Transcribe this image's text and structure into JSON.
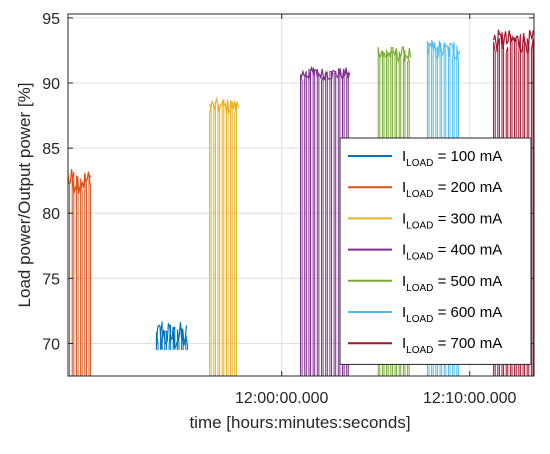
{
  "chart_data": {
    "type": "line",
    "xlabel": "time [hours:minutes:seconds]",
    "ylabel": "Load power/Output power [%]",
    "ylim": [
      67.5,
      95.3
    ],
    "yticks": [
      70,
      75,
      80,
      85,
      90,
      95
    ],
    "xticks": [
      {
        "label": "12:00:00.000",
        "t": 0
      },
      {
        "label": "12:10:00.000",
        "t": 600
      }
    ],
    "xlim": [
      -682,
      805
    ],
    "grid": true,
    "legend_position": "right",
    "series": [
      {
        "name": "I_LOAD = 100 mA",
        "label_pre": "I",
        "label_sub": "LOAD",
        "label_post": " = 100 mA",
        "color": "#0072BD",
        "t_start": -400,
        "t_end": -303,
        "base": 69.5,
        "level": 70.5,
        "noise": 1.2
      },
      {
        "name": "I_LOAD = 200 mA",
        "label_pre": "I",
        "label_sub": "LOAD",
        "label_post": " = 200 mA",
        "color": "#D95319",
        "t_start": -682,
        "t_end": -608,
        "base": 67.5,
        "level": 82.5,
        "noise": 1.0
      },
      {
        "name": "I_LOAD = 300 mA",
        "label_pre": "I",
        "label_sub": "LOAD",
        "label_post": " = 300 mA",
        "color": "#EDB120",
        "t_start": -230,
        "t_end": -137,
        "base": 67.5,
        "level": 88.2,
        "noise": 0.6
      },
      {
        "name": "I_LOAD = 400 mA",
        "label_pre": "I",
        "label_sub": "LOAD",
        "label_post": " = 400 mA",
        "color": "#7E2F8E",
        "t_start": 60,
        "t_end": 220,
        "base": 67.5,
        "level": 90.7,
        "noise": 0.5
      },
      {
        "name": "I_LOAD = 500 mA",
        "label_pre": "I",
        "label_sub": "LOAD",
        "label_post": " = 500 mA",
        "color": "#77AC30",
        "t_start": 308,
        "t_end": 413,
        "base": 67.5,
        "level": 92.2,
        "noise": 0.6
      },
      {
        "name": "I_LOAD = 600 mA",
        "label_pre": "I",
        "label_sub": "LOAD",
        "label_post": " = 600 mA",
        "color": "#4DBEEE",
        "t_start": 465,
        "t_end": 570,
        "base": 67.5,
        "level": 92.5,
        "noise": 0.8
      },
      {
        "name": "I_LOAD = 700 mA",
        "label_pre": "I",
        "label_sub": "LOAD",
        "label_post": " = 700 mA",
        "color": "#A2142F",
        "t_start": 676,
        "t_end": 805,
        "base": 67.5,
        "level": 93.2,
        "noise": 0.9
      }
    ]
  }
}
